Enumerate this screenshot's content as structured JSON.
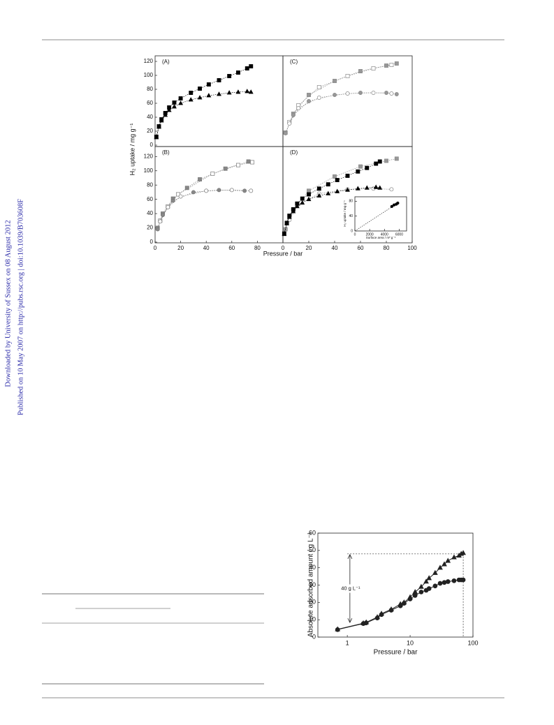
{
  "sidebar": {
    "downloaded": "Downloaded by University of Sussex on 08 August 2012",
    "published": "Published on 10 May 2007 on http://pubs.rsc.org | doi:10.1039/B703608F"
  },
  "chart_data": [
    {
      "type": "scatter",
      "panel_label": "(A)",
      "y_label": "H₂ uptake / mg g⁻¹",
      "xlim": [
        0,
        100
      ],
      "ylim": [
        -2,
        128
      ],
      "yticks": [
        0,
        20,
        40,
        60,
        80,
        100,
        120
      ],
      "line": "dotted",
      "series": [
        {
          "marker": "square",
          "color": "#000000",
          "fill": "#000000",
          "x": [
            1,
            3,
            5,
            8,
            11,
            15,
            20,
            28,
            35,
            42,
            50,
            58,
            65,
            72,
            75
          ],
          "values": [
            12,
            27,
            37,
            46,
            54,
            61,
            67,
            75,
            81,
            87,
            93,
            99,
            104,
            110,
            113
          ]
        },
        {
          "marker": "triangle",
          "color": "#000000",
          "fill": "#000000",
          "x": [
            1,
            3,
            5,
            8,
            11,
            15,
            20,
            28,
            35,
            42,
            50,
            58,
            65,
            72,
            75
          ],
          "values": [
            11,
            26,
            35,
            43,
            50,
            55,
            60,
            65,
            68,
            71,
            73,
            75,
            76,
            77,
            76
          ]
        }
      ]
    },
    {
      "type": "scatter",
      "panel_label": "(B)",
      "x_label": "Pressure / bar",
      "xlim": [
        0,
        100
      ],
      "ylim": [
        -1,
        134
      ],
      "xticks": [
        0,
        20,
        40,
        60,
        80
      ],
      "yticks": [
        0,
        20,
        40,
        60,
        80,
        100,
        120
      ],
      "line": "dotted",
      "series": [
        {
          "marker": "square",
          "color": "#777777",
          "fill": "#888888",
          "x": [
            2,
            6,
            14,
            25,
            35,
            55,
            73
          ],
          "values": [
            20,
            40,
            61,
            76,
            88,
            103,
            113
          ]
        },
        {
          "marker": "square",
          "color": "#777777",
          "fill": "none",
          "x": [
            4,
            10,
            18,
            45,
            65,
            76
          ],
          "values": [
            30,
            50,
            67,
            96,
            108,
            112
          ]
        },
        {
          "marker": "circle",
          "color": "#777777",
          "fill": "#888888",
          "x": [
            2,
            6,
            14,
            30,
            50,
            70
          ],
          "values": [
            18,
            38,
            58,
            70,
            73,
            72
          ]
        },
        {
          "marker": "circle",
          "color": "#777777",
          "fill": "none",
          "x": [
            4,
            10,
            20,
            40,
            60,
            75
          ],
          "values": [
            29,
            49,
            64,
            72,
            73,
            72
          ]
        }
      ]
    },
    {
      "type": "scatter",
      "panel_label": "(C)",
      "xlim": [
        0,
        100
      ],
      "ylim": [
        -2,
        128
      ],
      "line": "dotted",
      "series": [
        {
          "marker": "square",
          "color": "#888888",
          "fill": "#999999",
          "x": [
            2,
            8,
            20,
            40,
            60,
            80,
            88
          ],
          "values": [
            18,
            45,
            72,
            92,
            106,
            114,
            117
          ]
        },
        {
          "marker": "square",
          "color": "#888888",
          "fill": "none",
          "x": [
            5,
            12,
            28,
            50,
            70,
            84
          ],
          "values": [
            33,
            57,
            83,
            99,
            110,
            115
          ]
        },
        {
          "marker": "circle",
          "color": "#888888",
          "fill": "#999999",
          "x": [
            2,
            8,
            20,
            40,
            60,
            80,
            88
          ],
          "values": [
            17,
            43,
            63,
            72,
            75,
            75,
            73
          ]
        },
        {
          "marker": "circle",
          "color": "#888888",
          "fill": "none",
          "x": [
            5,
            12,
            28,
            50,
            70,
            84
          ],
          "values": [
            31,
            53,
            68,
            74,
            75,
            74
          ]
        }
      ]
    },
    {
      "type": "scatter",
      "panel_label": "(D)",
      "xlim": [
        0,
        100
      ],
      "ylim": [
        -1,
        134
      ],
      "xticks": [
        0,
        20,
        40,
        60,
        80,
        100
      ],
      "line": "dotted",
      "series": [
        {
          "marker": "square",
          "color": "#888888",
          "fill": "#999999",
          "x": [
            2,
            8,
            20,
            40,
            60,
            80,
            88
          ],
          "values": [
            18,
            45,
            72,
            92,
            106,
            114,
            117
          ]
        },
        {
          "marker": "circle",
          "color": "#888888",
          "fill": "none",
          "x": [
            5,
            12,
            28,
            50,
            70,
            84
          ],
          "values": [
            31,
            53,
            68,
            74,
            75,
            74
          ]
        },
        {
          "marker": "square",
          "color": "#000000",
          "fill": "#000000",
          "x": [
            1,
            3,
            5,
            8,
            11,
            15,
            20,
            28,
            35,
            42,
            50,
            58,
            65,
            72,
            75
          ],
          "values": [
            12,
            27,
            37,
            46,
            54,
            61,
            67,
            75,
            81,
            87,
            93,
            99,
            104,
            110,
            113
          ]
        },
        {
          "marker": "triangle",
          "color": "#000000",
          "fill": "#000000",
          "x": [
            1,
            3,
            5,
            8,
            11,
            15,
            20,
            28,
            35,
            42,
            50,
            58,
            65,
            72,
            75
          ],
          "values": [
            11,
            26,
            35,
            43,
            50,
            55,
            60,
            65,
            68,
            71,
            73,
            75,
            76,
            77,
            76
          ]
        }
      ]
    },
    {
      "type": "scatter",
      "x_label": "Surface area / m² g⁻¹",
      "y_label": "H₂ uptake / mg g⁻¹",
      "xlim": [
        0,
        7000
      ],
      "ylim": [
        0,
        92
      ],
      "xticks": [
        0,
        2000,
        4000,
        6000
      ],
      "yticks": [
        0,
        40,
        80
      ],
      "fit_line": "dotted",
      "series": [
        {
          "marker": "circle",
          "color": "#000000",
          "fill": "#000000",
          "x": [
            5000,
            5300,
            5600,
            5800
          ],
          "values": [
            66,
            70,
            72,
            75
          ]
        }
      ]
    },
    {
      "type": "scatter",
      "x_label": "Pressure / bar",
      "y_label": "Absolute adsorbed amount / g L⁻¹",
      "log_x": true,
      "xlim": [
        0.34,
        100
      ],
      "ylim": [
        0,
        60
      ],
      "xticks": [
        1,
        10,
        100
      ],
      "yticks": [
        0,
        10,
        20,
        30,
        40,
        50,
        60
      ],
      "line": "solid",
      "annotation": "40 g L⁻¹",
      "hline": 48,
      "vline": 70,
      "arrow_from": 8,
      "series": [
        {
          "marker": "triangle",
          "color": "#222222",
          "fill": "#222222",
          "x": [
            0.7,
            1.8,
            2,
            3,
            3.5,
            5,
            7,
            8,
            10,
            12,
            15,
            18,
            20,
            25,
            30,
            35,
            40,
            50,
            60,
            65,
            70
          ],
          "values": [
            4.5,
            8,
            8.5,
            11.5,
            13.5,
            16,
            19,
            20,
            23,
            26,
            29,
            32,
            34,
            37,
            40,
            42,
            44,
            46,
            47,
            48,
            48.5
          ]
        },
        {
          "marker": "circle",
          "color": "#222222",
          "fill": "#222222",
          "x": [
            0.7,
            1.8,
            2,
            3,
            3.5,
            5,
            7,
            8,
            10,
            12,
            15,
            18,
            20,
            25,
            30,
            35,
            40,
            50,
            60,
            65,
            70
          ],
          "values": [
            4.3,
            7.8,
            8.2,
            11,
            13,
            15.5,
            18,
            19.5,
            22,
            24,
            26,
            27,
            28,
            29.5,
            31,
            31.5,
            32,
            32.5,
            33,
            33,
            33
          ]
        }
      ]
    }
  ]
}
